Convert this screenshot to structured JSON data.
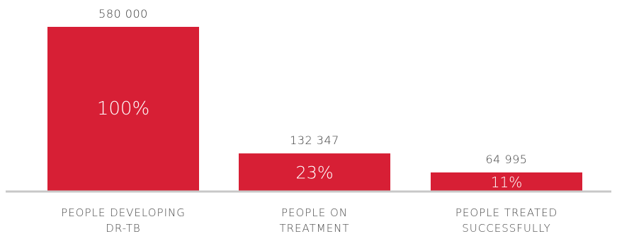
{
  "chart_data": {
    "type": "bar",
    "categories": [
      [
        "PEOPLE DEVELOPING",
        "DR-TB"
      ],
      [
        "PEOPLE ON",
        "TREATMENT"
      ],
      [
        "PEOPLE TREATED",
        "SUCCESSFULLY"
      ]
    ],
    "values": [
      580000,
      132347,
      64995
    ],
    "value_labels": [
      "580 000",
      "132 347",
      "64 995"
    ],
    "percent_labels": [
      "100%",
      "23%",
      "11%"
    ],
    "ylim": [
      0,
      580000
    ],
    "grid": false,
    "legend": "none"
  },
  "colors": {
    "bar": "#d71f35",
    "baseline": "#c8c8c8"
  }
}
